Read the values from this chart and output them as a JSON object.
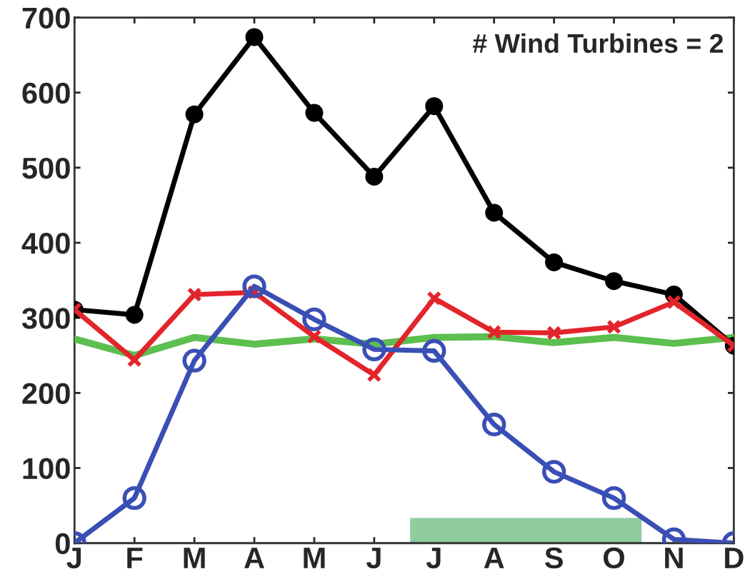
{
  "chart_data": {
    "type": "line",
    "categories": [
      "J",
      "F",
      "M",
      "A",
      "M",
      "J",
      "J",
      "A",
      "S",
      "O",
      "N",
      "D"
    ],
    "series": [
      {
        "color": "#5cbf4f",
        "marker": "none",
        "values": [
          272,
          250,
          274,
          265,
          272,
          265,
          274,
          275,
          267,
          274,
          266,
          274
        ]
      },
      {
        "color": "#000000",
        "marker": "circle",
        "values": [
          311,
          304,
          571,
          674,
          573,
          488,
          582,
          440,
          374,
          349,
          331,
          263
        ]
      },
      {
        "color": "#e3242b",
        "marker": "cross",
        "values": [
          311,
          244,
          331,
          334,
          275,
          224,
          326,
          281,
          280,
          288,
          321,
          263
        ]
      },
      {
        "color": "#3a4fb5",
        "marker": "circle_open",
        "values": [
          0,
          60,
          243,
          342,
          298,
          258,
          256,
          158,
          95,
          60,
          5,
          0
        ]
      }
    ],
    "ylim": [
      0,
      700
    ],
    "yticks": [
      0,
      100,
      200,
      300,
      400,
      500,
      600,
      700
    ],
    "grid": false,
    "annotations": [
      "# Wind Turbines = 2"
    ]
  }
}
